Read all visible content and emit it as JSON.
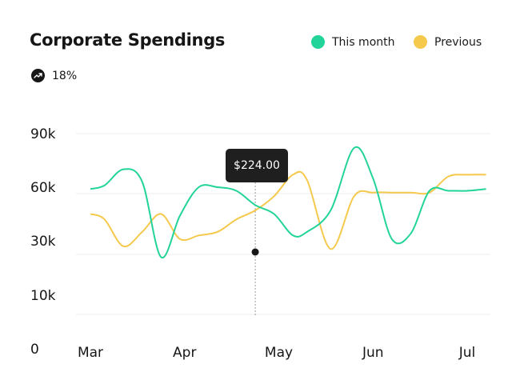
{
  "header": {
    "title": "Corporate Spendings",
    "stat_value": "18%",
    "trend_icon": "trend-up-icon"
  },
  "legend": [
    {
      "label": "This month",
      "color": "#22d39a"
    },
    {
      "label": "Previous",
      "color": "#f5c94c"
    }
  ],
  "tooltip": {
    "value": "$224.00"
  },
  "chart_data": {
    "type": "line",
    "title": "Corporate Spendings",
    "categories": [
      "Mar",
      "Apr",
      "May",
      "Jun",
      "Jul"
    ],
    "y_ticks": [
      "0",
      "10k",
      "30k",
      "60k",
      "90k"
    ],
    "grid": true,
    "legend_position": "top-right",
    "x": [
      0,
      0.15,
      0.35,
      0.55,
      0.75,
      0.95,
      1.15,
      1.35,
      1.55,
      1.75,
      1.95,
      2.15,
      2.3,
      2.55,
      2.8,
      3.0,
      3.2,
      3.4,
      3.6,
      3.8,
      4.0,
      4.2
    ],
    "series": [
      {
        "name": "This month",
        "color": "#22d39a",
        "values": [
          59,
          61,
          70,
          63,
          24,
          44,
          60,
          60,
          58,
          50,
          45,
          33,
          35,
          47,
          82,
          65,
          31,
          34,
          58,
          58,
          58,
          59
        ]
      },
      {
        "name": "Previous",
        "color": "#f5c94c",
        "values": [
          45,
          42,
          28,
          35,
          45,
          31,
          33,
          35,
          42,
          47,
          55,
          67,
          64,
          27,
          55,
          57,
          57,
          57,
          57,
          66,
          67,
          67
        ]
      }
    ],
    "highlight": {
      "category_position": 1.75,
      "value": 30
    }
  }
}
